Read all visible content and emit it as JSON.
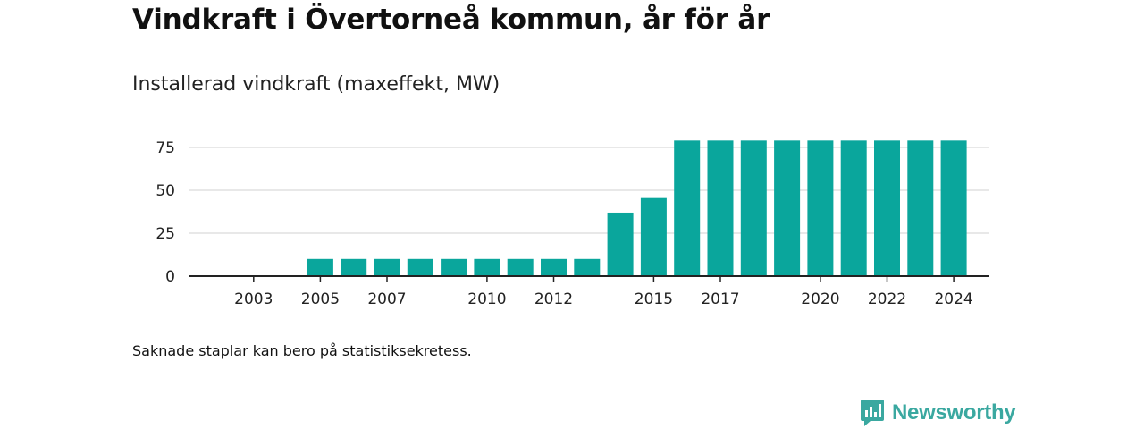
{
  "title": "Vindkraft i Övertorneå kommun, år för år",
  "subtitle": "Installerad vindkraft (maxeffekt, MW)",
  "note": "Saknade staplar kan bero på statistiksekretess.",
  "brand": "Newsworthy",
  "colors": {
    "bar": "#0aa69c",
    "grid": "#d9d9d9",
    "axis": "#222222",
    "brand": "#3aa8a0"
  },
  "chart_data": {
    "type": "bar",
    "categories": [
      "2002",
      "2003",
      "2004",
      "2005",
      "2006",
      "2007",
      "2008",
      "2009",
      "2010",
      "2011",
      "2012",
      "2013",
      "2014",
      "2015",
      "2016",
      "2017",
      "2018",
      "2019",
      "2020",
      "2021",
      "2022",
      "2023",
      "2024"
    ],
    "values": [
      null,
      null,
      null,
      10,
      10,
      10,
      10,
      10,
      10,
      10,
      10,
      10,
      37,
      46,
      79,
      79,
      79,
      79,
      79,
      79,
      79,
      79,
      79
    ],
    "x_tick_labels": [
      "2003",
      "2005",
      "2007",
      "2010",
      "2012",
      "2015",
      "2017",
      "2020",
      "2022",
      "2024"
    ],
    "y_ticks": [
      0,
      25,
      50,
      75
    ],
    "ylim": [
      0,
      82
    ],
    "grid": true,
    "title": "Installerad vindkraft (maxeffekt, MW)",
    "xlabel": "",
    "ylabel": ""
  }
}
